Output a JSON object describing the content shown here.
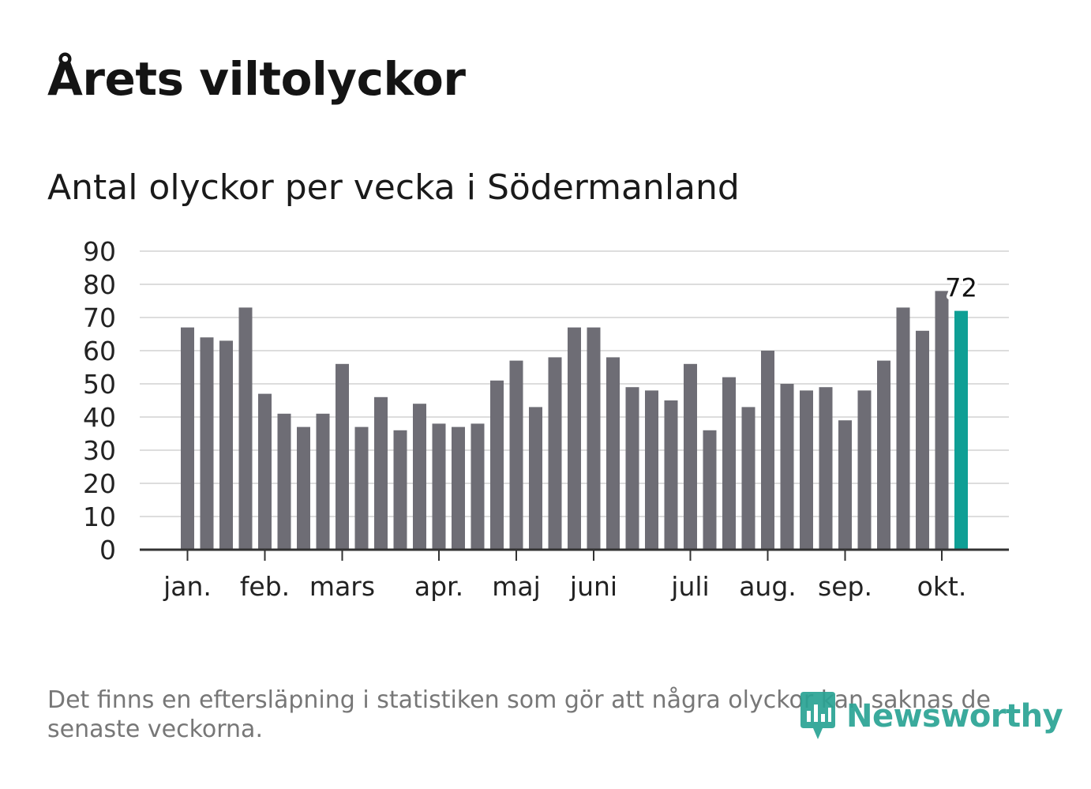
{
  "title": "Årets viltolyckor",
  "subtitle": "Antal olyckor per vecka i Södermanland",
  "note": "Det finns en eftersläpning i statistiken som gör att några olyckor kan saknas de senaste veckorna.",
  "logo": {
    "text": "Newsworthy",
    "icon": "chart-bubble-icon"
  },
  "colors": {
    "bar": "#6e6d75",
    "highlight": "#0f9f95",
    "grid": "#dddddd",
    "axis": "#333333",
    "text": "#222222"
  },
  "chart_data": {
    "type": "bar",
    "title": "Antal olyckor per vecka i Södermanland",
    "xlabel": "",
    "ylabel": "",
    "ylim": [
      0,
      90
    ],
    "yticks": [
      0,
      10,
      20,
      30,
      40,
      50,
      60,
      70,
      80,
      90
    ],
    "grid": true,
    "values": [
      67,
      64,
      63,
      73,
      47,
      41,
      37,
      41,
      56,
      37,
      46,
      36,
      44,
      38,
      37,
      38,
      51,
      57,
      43,
      58,
      67,
      67,
      58,
      49,
      48,
      45,
      56,
      36,
      52,
      43,
      60,
      50,
      48,
      49,
      39,
      48,
      57,
      73,
      66,
      78,
      72
    ],
    "highlight_index": 40,
    "highlight_label": "72",
    "month_labels": [
      {
        "label": "jan.",
        "week": 0
      },
      {
        "label": "feb.",
        "week": 4
      },
      {
        "label": "mars",
        "week": 8
      },
      {
        "label": "apr.",
        "week": 13
      },
      {
        "label": "maj",
        "week": 17
      },
      {
        "label": "juni",
        "week": 21
      },
      {
        "label": "juli",
        "week": 26
      },
      {
        "label": "aug.",
        "week": 30
      },
      {
        "label": "sep.",
        "week": 34
      },
      {
        "label": "okt.",
        "week": 39
      }
    ]
  }
}
